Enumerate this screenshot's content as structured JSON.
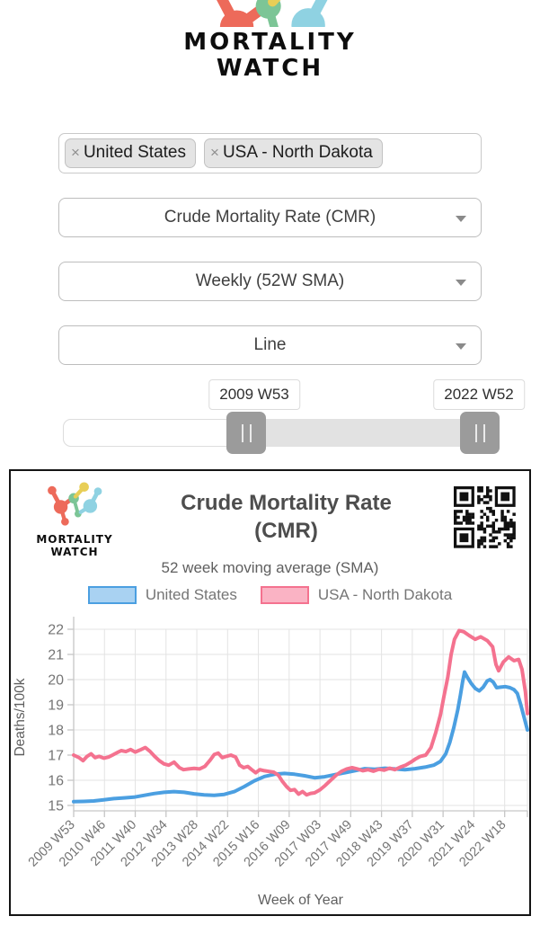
{
  "brand": {
    "name_line1": "MORTALITY",
    "name_line2": "WATCH",
    "colors": {
      "red": "#ED6A5A",
      "yellow": "#E8CE56",
      "green": "#7CC596",
      "cyan": "#8FD2E2"
    }
  },
  "filters": {
    "tags": [
      {
        "label": "United States",
        "remove": "×"
      },
      {
        "label": "USA - North Dakota",
        "remove": "×"
      }
    ],
    "metric_select": {
      "value": "Crude Mortality Rate (CMR)"
    },
    "frequency_select": {
      "value": "Weekly (52W SMA)"
    },
    "type_select": {
      "value": "Line"
    },
    "range": {
      "start_label": "2009 W53",
      "end_label": "2022 W52"
    }
  },
  "chart": {
    "title_line1": "Crude Mortality Rate",
    "title_line2": "(CMR)",
    "subtitle": "52 week moving average (SMA)"
  },
  "chart_data": {
    "type": "line",
    "title": "Crude Mortality Rate (CMR)",
    "subtitle": "52 week moving average (SMA)",
    "xlabel": "Week of Year",
    "ylabel": "Deaths/100k",
    "ylim": [
      15,
      22
    ],
    "yticks": [
      15,
      16,
      17,
      18,
      19,
      20,
      21,
      22
    ],
    "grid": true,
    "legend_position": "top",
    "x_tick_weeks": [
      0,
      46,
      92,
      138,
      184,
      230,
      276,
      322,
      368,
      414,
      460,
      506,
      552,
      598,
      644
    ],
    "x_tick_labels": [
      "2009 W53",
      "2010 W46",
      "2011 W40",
      "2012 W34",
      "2013 W28",
      "2014 W22",
      "2015 W16",
      "2016 W09",
      "2017 W03",
      "2017 W49",
      "2018 W43",
      "2019 W37",
      "2020 W31",
      "2021 W24",
      "2022 W18"
    ],
    "x_end_week": 678,
    "x_range": [
      "2009 W53",
      "2022 W52"
    ],
    "series": [
      {
        "name": "United States",
        "line_color": "#4B9FE1",
        "legend_fill": "#A9D2F2",
        "points": [
          [
            0,
            15.15
          ],
          [
            15,
            15.16
          ],
          [
            30,
            15.18
          ],
          [
            45,
            15.22
          ],
          [
            60,
            15.27
          ],
          [
            75,
            15.3
          ],
          [
            90,
            15.33
          ],
          [
            105,
            15.4
          ],
          [
            120,
            15.47
          ],
          [
            135,
            15.52
          ],
          [
            150,
            15.55
          ],
          [
            165,
            15.52
          ],
          [
            180,
            15.46
          ],
          [
            195,
            15.42
          ],
          [
            210,
            15.4
          ],
          [
            225,
            15.44
          ],
          [
            240,
            15.55
          ],
          [
            255,
            15.75
          ],
          [
            270,
            15.98
          ],
          [
            285,
            16.15
          ],
          [
            300,
            16.24
          ],
          [
            315,
            16.27
          ],
          [
            330,
            16.24
          ],
          [
            345,
            16.18
          ],
          [
            360,
            16.1
          ],
          [
            375,
            16.14
          ],
          [
            390,
            16.22
          ],
          [
            405,
            16.3
          ],
          [
            420,
            16.38
          ],
          [
            435,
            16.46
          ],
          [
            450,
            16.44
          ],
          [
            465,
            16.48
          ],
          [
            480,
            16.45
          ],
          [
            495,
            16.42
          ],
          [
            510,
            16.46
          ],
          [
            525,
            16.52
          ],
          [
            538,
            16.6
          ],
          [
            548,
            16.75
          ],
          [
            556,
            17.05
          ],
          [
            562,
            17.5
          ],
          [
            568,
            18.1
          ],
          [
            574,
            18.8
          ],
          [
            578,
            19.4
          ],
          [
            581,
            19.9
          ],
          [
            584,
            20.3
          ],
          [
            588,
            20.1
          ],
          [
            594,
            19.85
          ],
          [
            600,
            19.65
          ],
          [
            606,
            19.55
          ],
          [
            612,
            19.7
          ],
          [
            618,
            19.95
          ],
          [
            622,
            20.0
          ],
          [
            627,
            19.9
          ],
          [
            632,
            19.68
          ],
          [
            638,
            19.7
          ],
          [
            645,
            19.72
          ],
          [
            652,
            19.68
          ],
          [
            658,
            19.6
          ],
          [
            663,
            19.45
          ],
          [
            668,
            19.0
          ],
          [
            673,
            18.5
          ],
          [
            678,
            18.0
          ]
        ]
      },
      {
        "name": "USA - North Dakota",
        "line_color": "#F4728F",
        "legend_fill": "#FAB3C4",
        "points": [
          [
            0,
            17.0
          ],
          [
            8,
            16.9
          ],
          [
            14,
            16.78
          ],
          [
            20,
            16.95
          ],
          [
            26,
            17.05
          ],
          [
            32,
            16.9
          ],
          [
            38,
            16.95
          ],
          [
            45,
            16.88
          ],
          [
            52,
            16.92
          ],
          [
            58,
            17.0
          ],
          [
            65,
            17.1
          ],
          [
            71,
            17.18
          ],
          [
            78,
            17.14
          ],
          [
            85,
            17.22
          ],
          [
            92,
            17.12
          ],
          [
            99,
            17.2
          ],
          [
            107,
            17.3
          ],
          [
            114,
            17.15
          ],
          [
            121,
            16.95
          ],
          [
            128,
            16.78
          ],
          [
            135,
            16.65
          ],
          [
            142,
            16.6
          ],
          [
            150,
            16.72
          ],
          [
            158,
            16.5
          ],
          [
            164,
            16.42
          ],
          [
            172,
            16.45
          ],
          [
            180,
            16.47
          ],
          [
            188,
            16.45
          ],
          [
            196,
            16.55
          ],
          [
            204,
            16.8
          ],
          [
            210,
            17.02
          ],
          [
            216,
            17.08
          ],
          [
            222,
            16.9
          ],
          [
            228,
            16.95
          ],
          [
            235,
            17.0
          ],
          [
            242,
            16.92
          ],
          [
            248,
            16.6
          ],
          [
            254,
            16.5
          ],
          [
            260,
            16.55
          ],
          [
            266,
            16.42
          ],
          [
            272,
            16.3
          ],
          [
            278,
            16.42
          ],
          [
            285,
            16.38
          ],
          [
            292,
            16.35
          ],
          [
            299,
            16.32
          ],
          [
            306,
            16.2
          ],
          [
            312,
            15.95
          ],
          [
            318,
            15.75
          ],
          [
            324,
            15.6
          ],
          [
            330,
            15.63
          ],
          [
            336,
            15.45
          ],
          [
            342,
            15.55
          ],
          [
            348,
            15.42
          ],
          [
            354,
            15.48
          ],
          [
            360,
            15.5
          ],
          [
            368,
            15.62
          ],
          [
            376,
            15.8
          ],
          [
            384,
            16.0
          ],
          [
            392,
            16.2
          ],
          [
            400,
            16.35
          ],
          [
            408,
            16.45
          ],
          [
            416,
            16.5
          ],
          [
            424,
            16.45
          ],
          [
            432,
            16.38
          ],
          [
            440,
            16.42
          ],
          [
            448,
            16.36
          ],
          [
            456,
            16.44
          ],
          [
            464,
            16.4
          ],
          [
            472,
            16.48
          ],
          [
            480,
            16.42
          ],
          [
            488,
            16.52
          ],
          [
            496,
            16.6
          ],
          [
            504,
            16.72
          ],
          [
            511,
            16.85
          ],
          [
            518,
            16.95
          ],
          [
            526,
            17.0
          ],
          [
            534,
            17.3
          ],
          [
            541,
            17.9
          ],
          [
            548,
            18.6
          ],
          [
            553,
            19.3
          ],
          [
            559,
            20.1
          ],
          [
            564,
            21.0
          ],
          [
            569,
            21.6
          ],
          [
            576,
            21.95
          ],
          [
            583,
            21.9
          ],
          [
            591,
            21.75
          ],
          [
            600,
            21.6
          ],
          [
            608,
            21.7
          ],
          [
            618,
            21.55
          ],
          [
            626,
            21.3
          ],
          [
            631,
            20.6
          ],
          [
            635,
            20.35
          ],
          [
            642,
            20.7
          ],
          [
            650,
            20.9
          ],
          [
            658,
            20.75
          ],
          [
            665,
            20.8
          ],
          [
            670,
            20.4
          ],
          [
            675,
            19.5
          ],
          [
            678,
            18.65
          ]
        ]
      }
    ]
  }
}
